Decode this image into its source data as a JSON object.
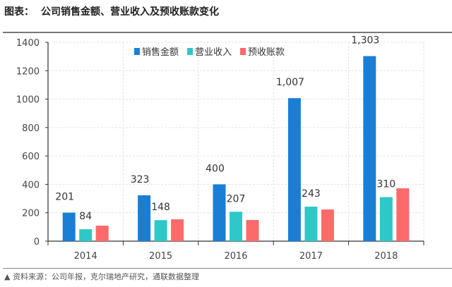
{
  "header": {
    "label": "图表：",
    "title": "公司销售金额、营业收入及预收账款变化"
  },
  "footer": {
    "marker": "▲",
    "source": "资料来源：公司年报，克尔瑞地产研究，通联数据整理"
  },
  "chart_data": {
    "type": "bar",
    "title": "公司销售金额、营业收入及预收账款变化",
    "categories": [
      "2014",
      "2015",
      "2016",
      "2017",
      "2018"
    ],
    "series": [
      {
        "name": "销售金额",
        "color": "#1a7fd4",
        "values": [
          201,
          323,
          400,
          1007,
          1303
        ],
        "labels": [
          "201",
          "323",
          "400",
          "1,007",
          "1,303"
        ]
      },
      {
        "name": "营业收入",
        "color": "#2ec8c8",
        "values": [
          84,
          148,
          207,
          243,
          310
        ],
        "labels": [
          "84",
          "148",
          "207",
          "243",
          "310"
        ]
      },
      {
        "name": "预收账款",
        "color": "#fd6a6a",
        "values": [
          109,
          154,
          149,
          223,
          372
        ],
        "labels": null
      }
    ],
    "ylim": [
      0,
      1400
    ],
    "yticks": [
      0,
      200,
      400,
      600,
      800,
      1000,
      1200,
      1400
    ],
    "grid": true,
    "legend": "top-center"
  }
}
